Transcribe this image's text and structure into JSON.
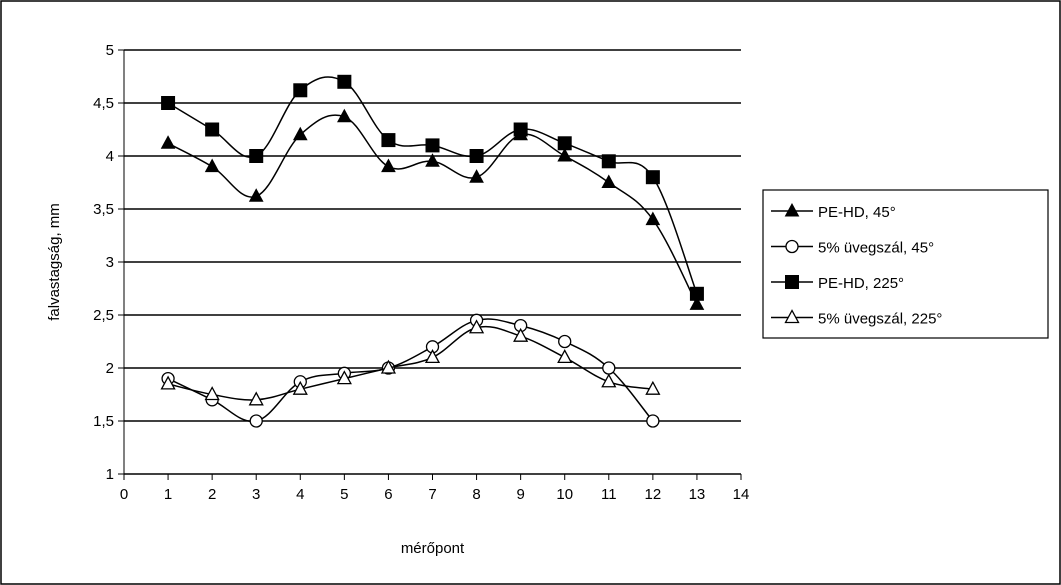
{
  "chart_data": {
    "type": "line",
    "xlabel": "mérőpont",
    "ylabel": "falvastagság, mm",
    "xlim": [
      0,
      14
    ],
    "ylim": [
      1,
      5
    ],
    "xticks": [
      "0",
      "1",
      "2",
      "3",
      "4",
      "5",
      "6",
      "7",
      "8",
      "9",
      "10",
      "11",
      "12",
      "13",
      "14"
    ],
    "yticks": [
      "1",
      "1,5",
      "2",
      "2,5",
      "3",
      "3,5",
      "4",
      "4,5",
      "5"
    ],
    "grid": "horizontal",
    "legend_position": "right",
    "series": [
      {
        "name": "PE-HD, 45°",
        "marker": "filled-triangle",
        "x": [
          1,
          2,
          3,
          4,
          5,
          6,
          7,
          8,
          9,
          10,
          11,
          12,
          13
        ],
        "y": [
          4.12,
          3.9,
          3.62,
          4.2,
          4.37,
          3.9,
          3.95,
          3.8,
          4.2,
          4.0,
          3.75,
          3.4,
          2.6
        ]
      },
      {
        "name": "5% üvegszál, 45°",
        "marker": "open-circle",
        "x": [
          1,
          2,
          3,
          4,
          5,
          6,
          7,
          8,
          9,
          10,
          11,
          12
        ],
        "y": [
          1.9,
          1.7,
          1.5,
          1.87,
          1.95,
          2.0,
          2.2,
          2.45,
          2.4,
          2.25,
          2.0,
          1.5
        ]
      },
      {
        "name": "PE-HD, 225°",
        "marker": "filled-square",
        "x": [
          1,
          2,
          3,
          4,
          5,
          6,
          7,
          8,
          9,
          10,
          11,
          12,
          13
        ],
        "y": [
          4.5,
          4.25,
          4.0,
          4.62,
          4.7,
          4.15,
          4.1,
          4.0,
          4.25,
          4.12,
          3.95,
          3.8,
          2.7
        ]
      },
      {
        "name": "5% üvegszál, 225°",
        "marker": "open-triangle",
        "x": [
          1,
          2,
          3,
          4,
          5,
          6,
          7,
          8,
          9,
          10,
          11,
          12
        ],
        "y": [
          1.85,
          1.75,
          1.7,
          1.8,
          1.9,
          2.0,
          2.1,
          2.38,
          2.3,
          2.1,
          1.87,
          1.8
        ]
      }
    ]
  }
}
